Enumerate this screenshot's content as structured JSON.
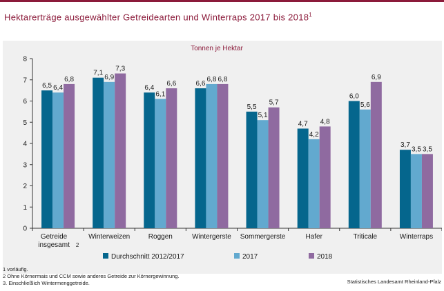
{
  "header": {
    "title": "Hektarerträge ausgewählter Getreidearten und Winterraps 2017 bis 2018",
    "title_sup": "1"
  },
  "chart_data": {
    "type": "bar",
    "subtitle": "Tonnen je Hektar",
    "categories": [
      "Getreide insgesamt",
      "Winterweizen",
      "Roggen",
      "Wintergerste",
      "Sommergerste",
      "Hafer",
      "Triticale",
      "Winterraps"
    ],
    "category_superscripts": [
      "2",
      "",
      "",
      "",
      "",
      "",
      "",
      ""
    ],
    "series": [
      {
        "name": "Durchschnitt 2012/2017",
        "color": "#05668d",
        "values": [
          6.5,
          7.1,
          6.4,
          6.6,
          5.5,
          4.7,
          6.0,
          3.7
        ],
        "labels": [
          "6,5",
          "7,1",
          "6,4",
          "6,6",
          "5,5",
          "4,7",
          "6,0",
          "3,7"
        ]
      },
      {
        "name": "2017",
        "color": "#62a9cf",
        "values": [
          6.4,
          6.9,
          6.1,
          6.8,
          5.1,
          4.2,
          5.6,
          3.5
        ],
        "labels": [
          "6,4",
          "6,9",
          "6,1",
          "6,8",
          "5,1",
          "4,2",
          "5,6",
          "3,5"
        ]
      },
      {
        "name": "2018",
        "color": "#8f6aa0",
        "values": [
          6.8,
          7.3,
          6.6,
          6.8,
          5.7,
          4.8,
          6.9,
          3.5
        ],
        "labels": [
          "6,8",
          "7,3",
          "6,6",
          "6,8",
          "5,7",
          "4,8",
          "6,9",
          "3,5"
        ]
      }
    ],
    "ylim": [
      0,
      8
    ],
    "yticks": [
      "0",
      "1",
      "2",
      "3",
      "4",
      "5",
      "6",
      "7",
      "8"
    ],
    "grid": false,
    "legend_position": "bottom"
  },
  "footnotes": [
    "1 vorläufig.",
    "2 Ohne Körnermais und CCM sowie anderes Getreide zur Körnergewinnung.",
    "3. Einschließlich Wintermenggetreide."
  ],
  "source": "Statistisches Landesamt Rheinland-Pfalz"
}
